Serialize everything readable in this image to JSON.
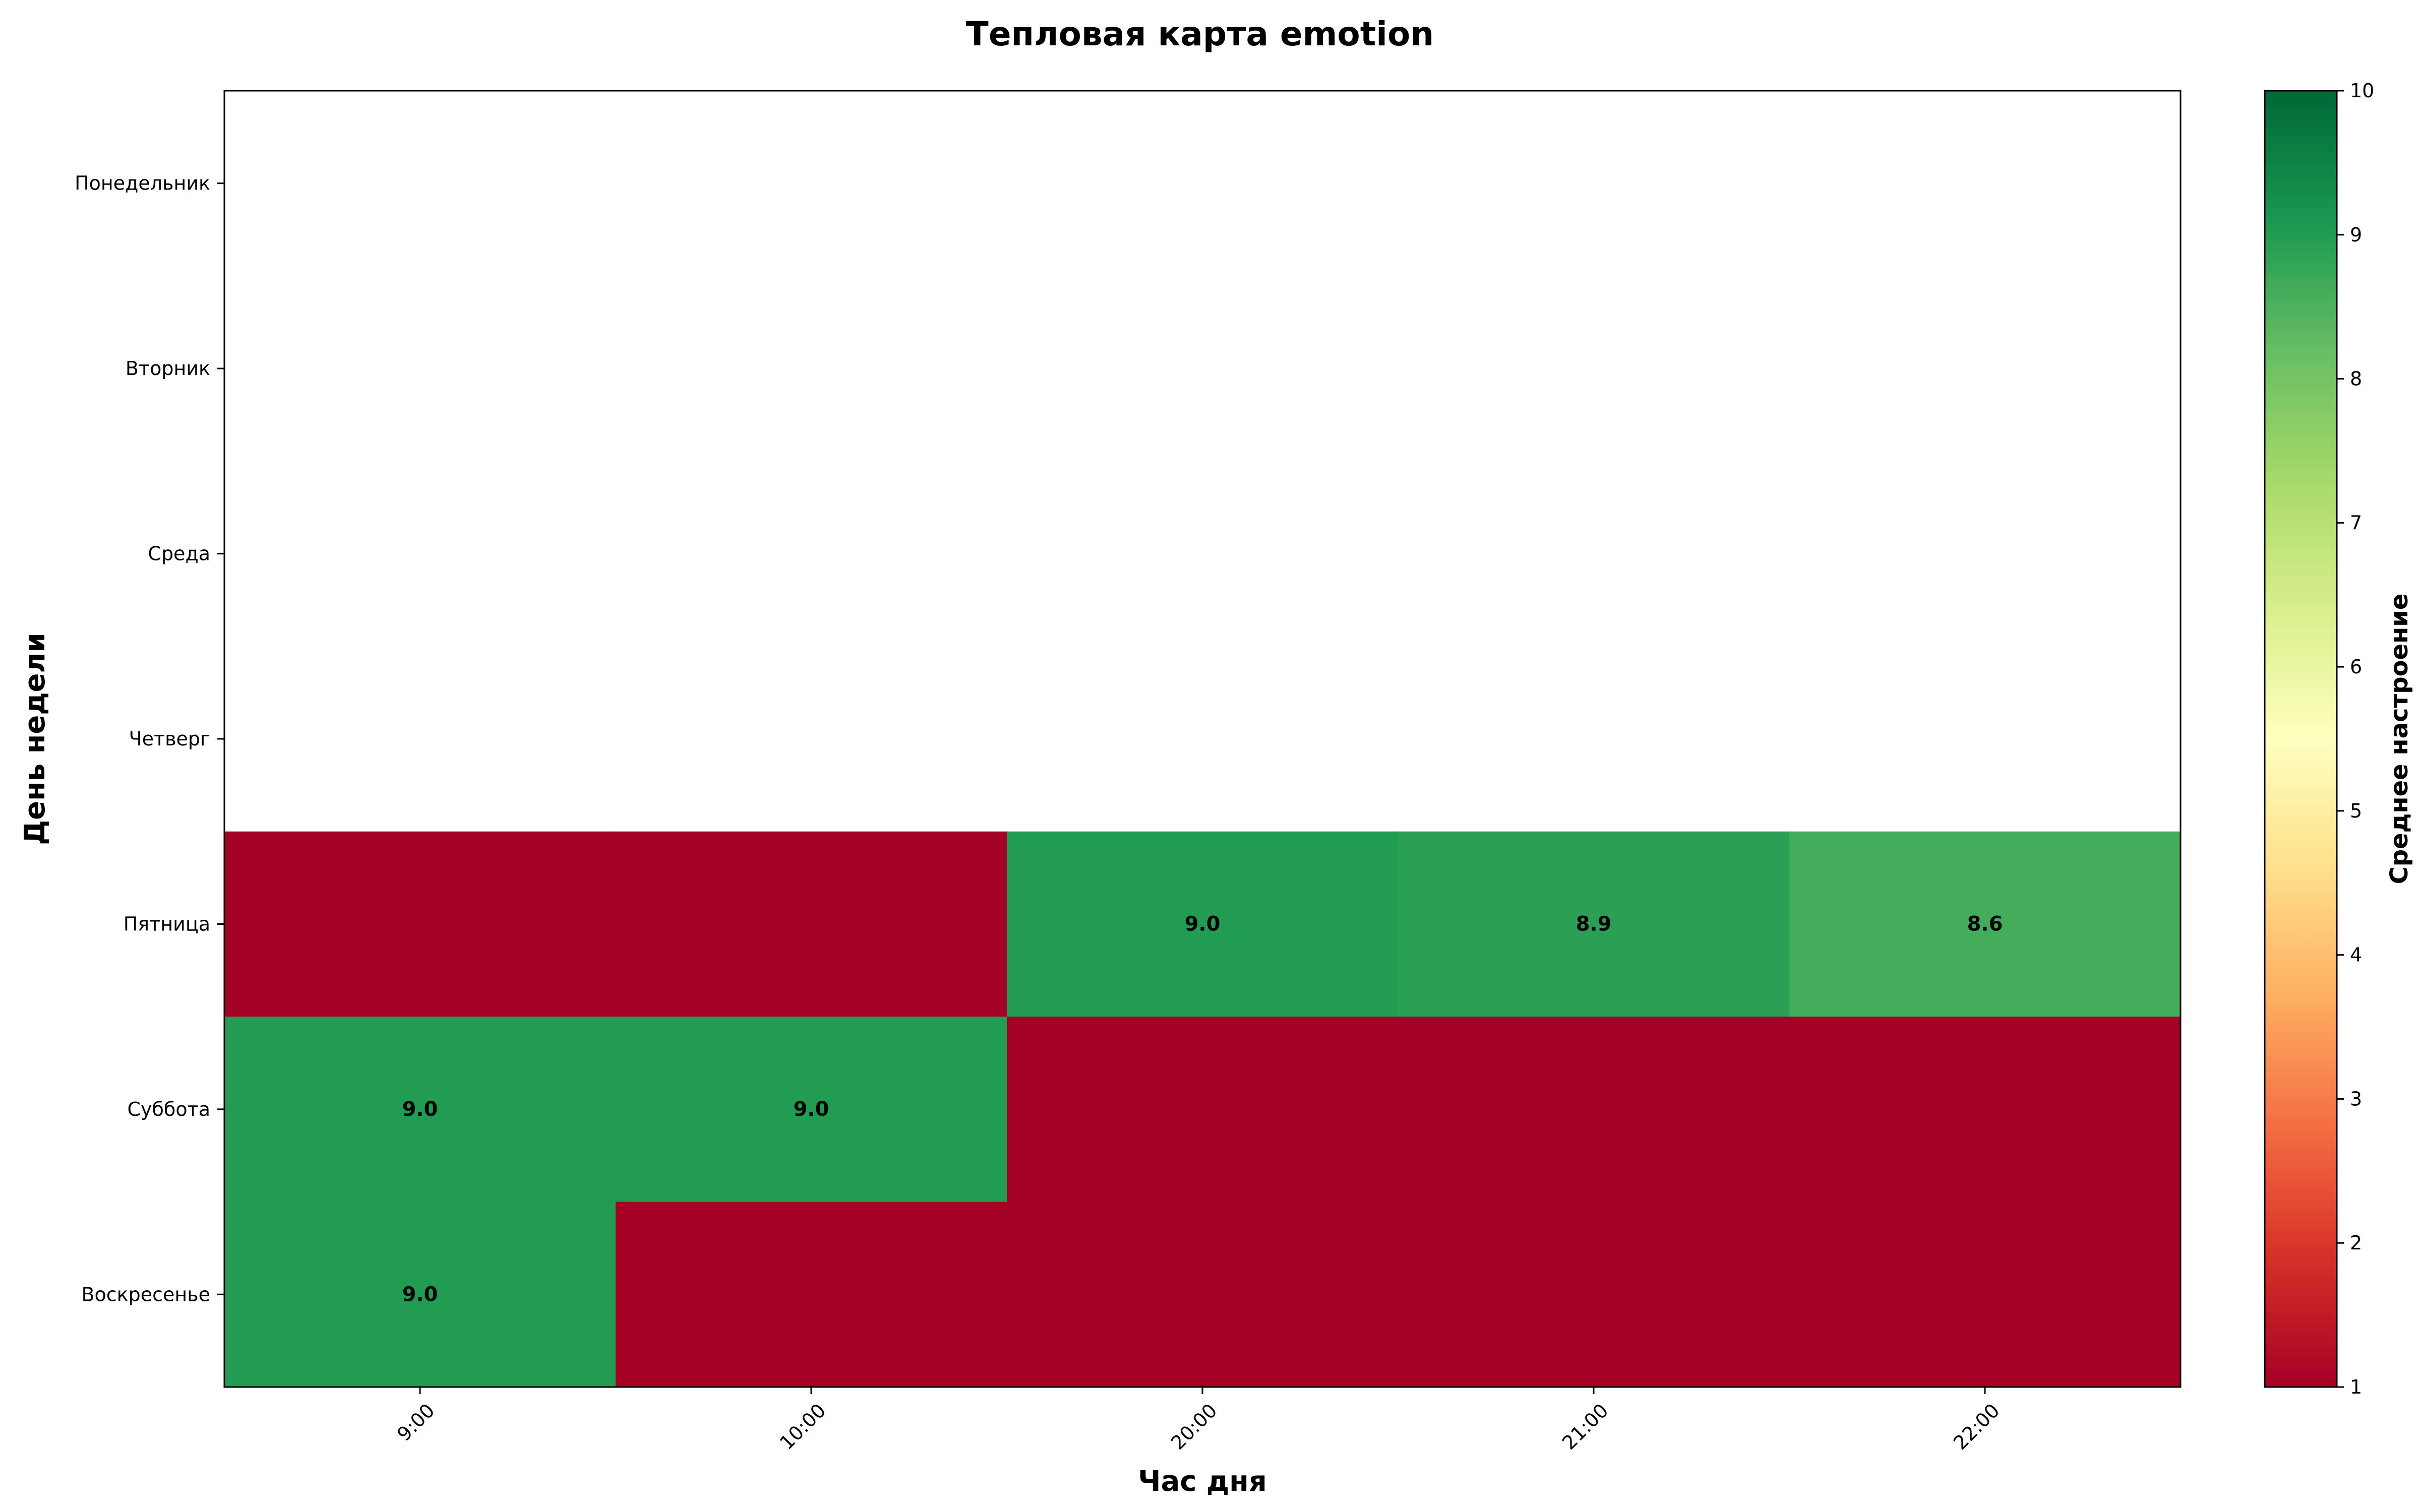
{
  "chart_data": {
    "type": "heatmap",
    "title": "Тепловая карта emotion",
    "xlabel": "Час дня",
    "ylabel": "День недели",
    "x_categories": [
      "9:00",
      "10:00",
      "20:00",
      "21:00",
      "22:00"
    ],
    "y_categories": [
      "Понедельник",
      "Вторник",
      "Среда",
      "Четверг",
      "Пятница",
      "Суббота",
      "Воскресенье"
    ],
    "values": [
      [
        null,
        null,
        null,
        null,
        null
      ],
      [
        null,
        null,
        null,
        null,
        null
      ],
      [
        null,
        null,
        null,
        null,
        null
      ],
      [
        null,
        null,
        null,
        null,
        null
      ],
      [
        1.0,
        1.0,
        9.0,
        8.9,
        8.6
      ],
      [
        9.0,
        9.0,
        1.0,
        1.0,
        1.0
      ],
      [
        9.0,
        1.0,
        1.0,
        1.0,
        1.0
      ]
    ],
    "cell_labels": [
      [
        "",
        "",
        "",
        "",
        ""
      ],
      [
        "",
        "",
        "",
        "",
        ""
      ],
      [
        "",
        "",
        "",
        "",
        ""
      ],
      [
        "",
        "",
        "",
        "",
        ""
      ],
      [
        "",
        "",
        "9.0",
        "8.9",
        "8.6"
      ],
      [
        "9.0",
        "9.0",
        "",
        "",
        ""
      ],
      [
        "9.0",
        "",
        "",
        "",
        ""
      ]
    ],
    "colorscale": "RdYlGn",
    "colorbar": {
      "label": "Среднее настроение",
      "range": [
        1,
        10
      ],
      "ticks": [
        "1",
        "2",
        "3",
        "4",
        "5",
        "6",
        "7",
        "8",
        "9",
        "10"
      ]
    },
    "x_tick_rotation_deg": 45,
    "grid": false
  }
}
